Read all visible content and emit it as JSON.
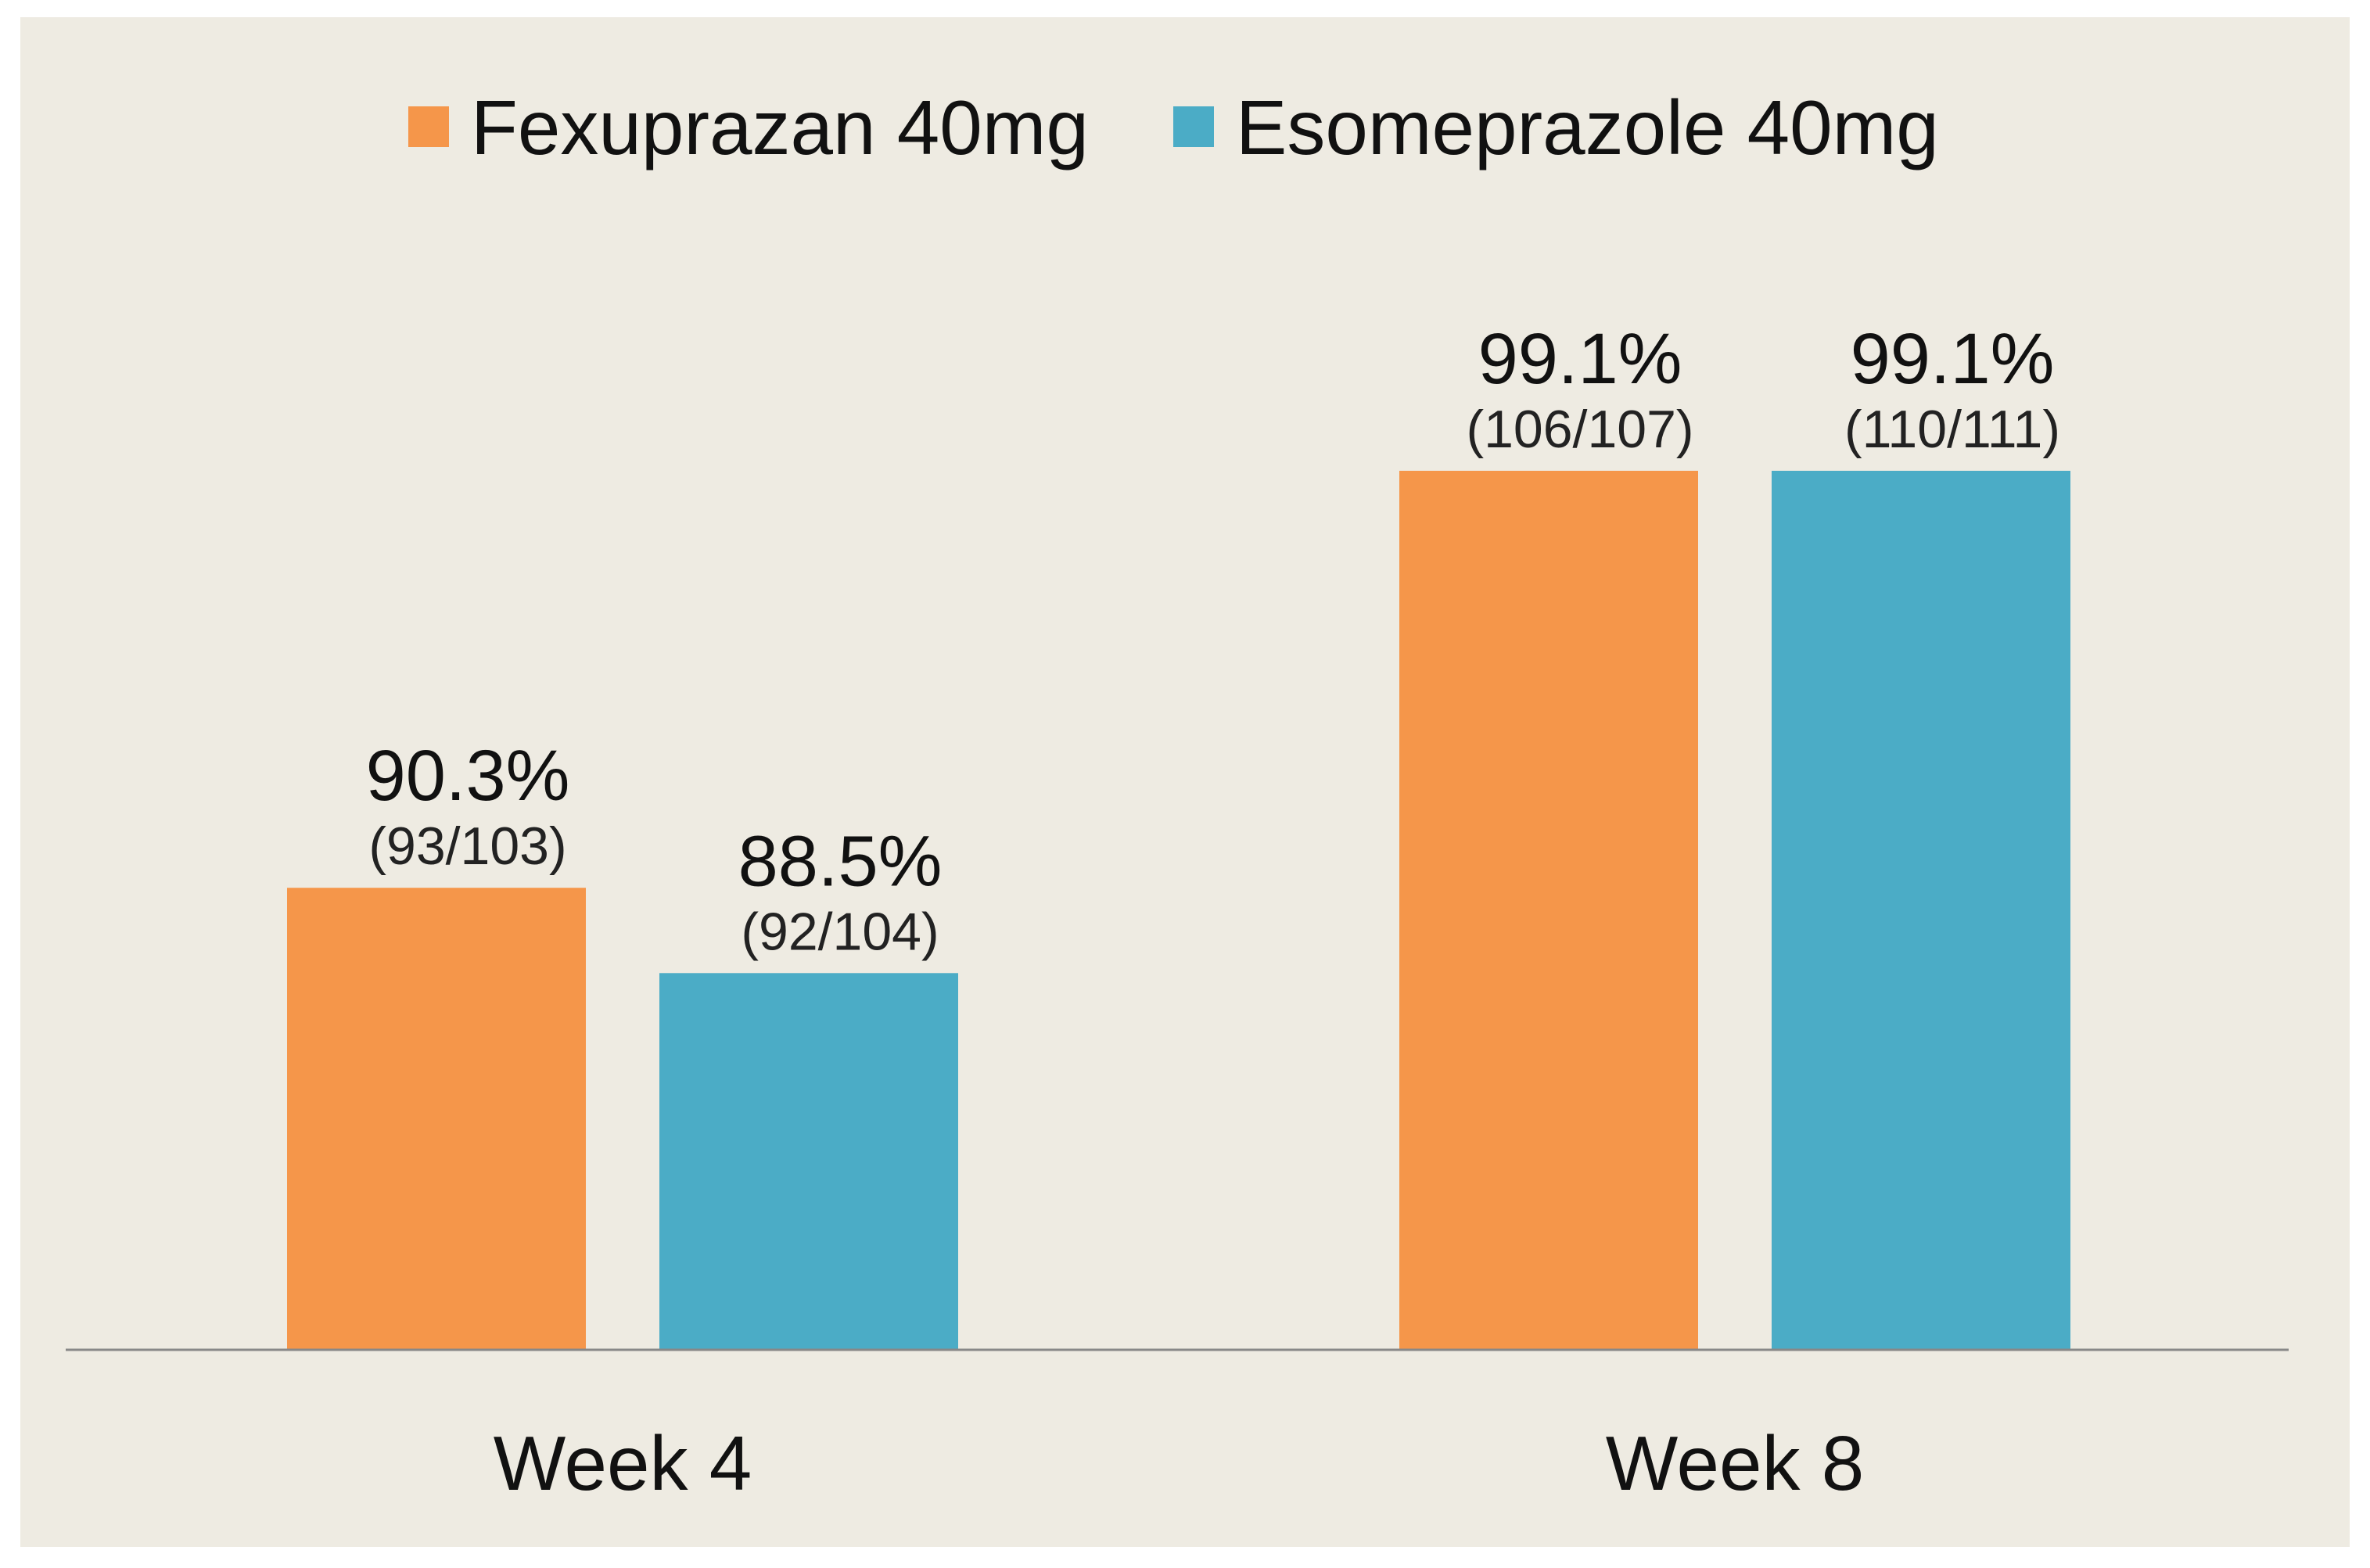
{
  "chart_data": {
    "type": "bar",
    "title": "",
    "xlabel": "",
    "ylabel": "",
    "ylim": [
      0,
      100
    ],
    "legend_position": "top-center",
    "grid": false,
    "categories": [
      "Week 4",
      "Week 8"
    ],
    "series": [
      {
        "name": "Fexuprazan 40mg",
        "color": "#F5964A",
        "values": [
          90.3,
          99.1
        ],
        "value_labels": [
          "90.3%",
          "99.1%"
        ],
        "count_labels": [
          "(93/103)",
          "(106/107)"
        ]
      },
      {
        "name": "Esomeprazole 40mg",
        "color": "#4BACC6",
        "values": [
          88.5,
          99.1
        ],
        "value_labels": [
          "88.5%",
          "99.1%"
        ],
        "count_labels": [
          "(92/104)",
          "(110/111)"
        ]
      }
    ],
    "background_color": "#EEEBE2",
    "axis_color": "#888888"
  }
}
